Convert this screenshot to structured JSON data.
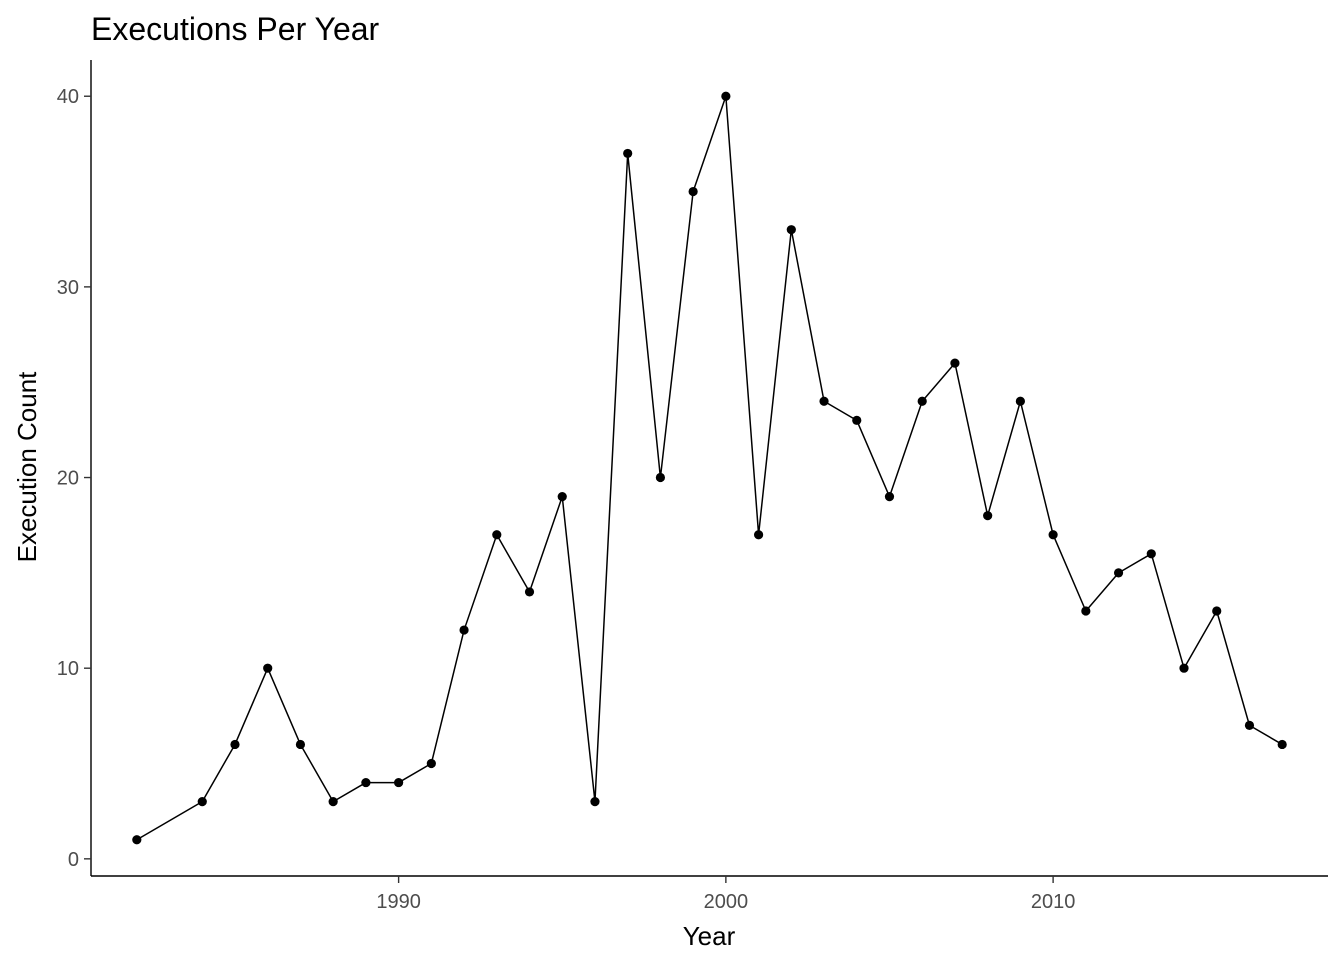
{
  "chart_data": {
    "type": "line",
    "title": "Executions Per Year",
    "xlabel": "Year",
    "ylabel": "Execution Count",
    "x_ticks": [
      1990,
      2000,
      2010
    ],
    "y_ticks": [
      0,
      10,
      20,
      30,
      40
    ],
    "xlim": [
      1980.6,
      2018.4
    ],
    "ylim": [
      -0.9,
      41.9
    ],
    "grid": false,
    "legend": "none",
    "colors": {
      "line": "#000000",
      "point": "#000000",
      "tick_label": "#4d4d4d"
    },
    "series": [
      {
        "x": [
          1982,
          1984,
          1985,
          1986,
          1987,
          1988,
          1989,
          1990,
          1991,
          1992,
          1993,
          1994,
          1995,
          1996,
          1997,
          1998,
          1999,
          2000,
          2001,
          2002,
          2003,
          2004,
          2005,
          2006,
          2007,
          2008,
          2009,
          2010,
          2011,
          2012,
          2013,
          2014,
          2015,
          2016,
          2017
        ],
        "values": [
          1,
          3,
          6,
          10,
          6,
          3,
          4,
          4,
          5,
          12,
          17,
          14,
          19,
          3,
          37,
          20,
          35,
          40,
          17,
          33,
          24,
          23,
          19,
          24,
          26,
          18,
          24,
          17,
          13,
          15,
          16,
          10,
          13,
          7,
          6
        ]
      }
    ]
  }
}
